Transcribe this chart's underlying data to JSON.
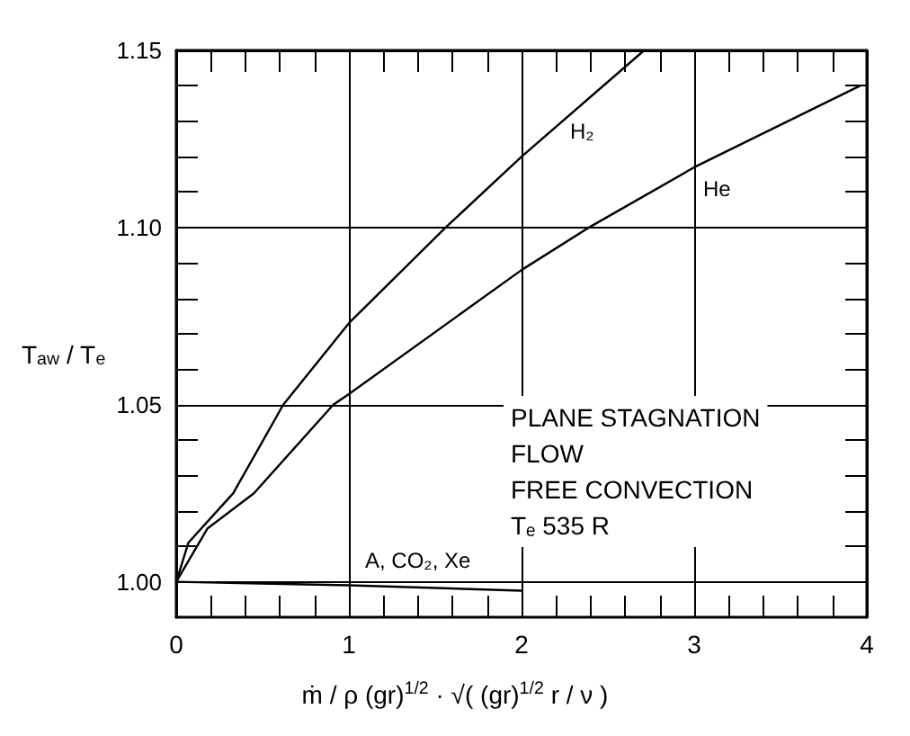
{
  "chart_data": {
    "type": "line",
    "xlabel": "ṁ / ρ (gr)$^{1/2}$ · √( (gr)$^{1/2}$ r / ν )",
    "ylabel": "T$_{aw}$ / T$_{e}$",
    "xlim": [
      0,
      4
    ],
    "ylim": [
      0.99,
      1.15
    ],
    "xticks": [
      0,
      {
        "value": 0.2,
        "label": null
      },
      {
        "value": 0.4,
        "label": null
      },
      {
        "value": 0.6,
        "label": null
      },
      {
        "value": 0.8,
        "label": null
      },
      1,
      {
        "value": 1.2,
        "label": null
      },
      {
        "value": 1.4,
        "label": null
      },
      {
        "value": 1.6,
        "label": null
      },
      {
        "value": 1.8,
        "label": null
      },
      2,
      {
        "value": 2.2,
        "label": null
      },
      {
        "value": 2.4,
        "label": null
      },
      {
        "value": 2.6,
        "label": null
      },
      {
        "value": 2.8,
        "label": null
      },
      3,
      {
        "value": 3.2,
        "label": null
      },
      {
        "value": 3.4,
        "label": null
      },
      {
        "value": 3.6,
        "label": null
      },
      {
        "value": 3.8,
        "label": null
      },
      4
    ],
    "yticks": [
      {
        "value": 1.0,
        "label": "1.00"
      },
      {
        "value": 1.01,
        "label": null
      },
      {
        "value": 1.02,
        "label": null
      },
      {
        "value": 1.03,
        "label": null
      },
      {
        "value": 1.04,
        "label": null
      },
      {
        "value": 1.05,
        "label": "1.05"
      },
      {
        "value": 1.06,
        "label": null
      },
      {
        "value": 1.07,
        "label": null
      },
      {
        "value": 1.08,
        "label": null
      },
      {
        "value": 1.09,
        "label": null
      },
      {
        "value": 1.1,
        "label": "1.10"
      },
      {
        "value": 1.11,
        "label": null
      },
      {
        "value": 1.12,
        "label": null
      },
      {
        "value": 1.13,
        "label": null
      },
      {
        "value": 1.14,
        "label": null
      },
      {
        "value": 1.15,
        "label": "1.15"
      }
    ],
    "grid": true,
    "series": [
      {
        "name": "H₂",
        "color": "#000000",
        "x": [
          0,
          0.07,
          0.33,
          0.62,
          1,
          1.56,
          2,
          2.71
        ],
        "values": [
          1.0,
          1.011,
          1.025,
          1.05,
          1.073,
          1.1,
          1.12,
          1.15
        ]
      },
      {
        "name": "He",
        "color": "#000000",
        "x": [
          0,
          0.18,
          0.45,
          0.91,
          1,
          2,
          2.39,
          3,
          3.96
        ],
        "values": [
          1.0,
          1.015,
          1.025,
          1.05,
          1.053,
          1.088,
          1.1,
          1.117,
          1.14
        ]
      },
      {
        "name": "A, CO₂, Xe",
        "color": "#000000",
        "x": [
          0,
          1,
          2
        ],
        "values": [
          1.0,
          0.999,
          0.9975
        ]
      }
    ],
    "annotations": [
      "PLANE STAGNATION\nFLOW\nFREE CONVECTION\nTₑ 535 R"
    ]
  }
}
